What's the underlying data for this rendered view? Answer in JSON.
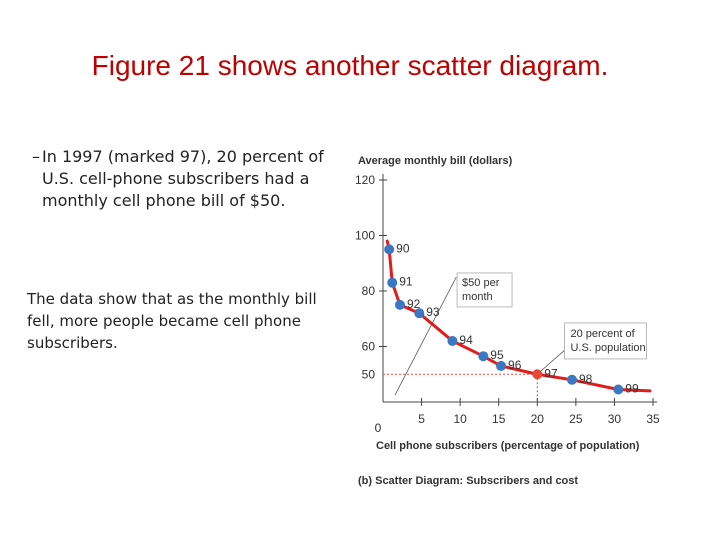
{
  "title": "Figure 21 shows another scatter diagram.",
  "bullet": {
    "dash": "–",
    "text": "In 1997 (marked 97), 20 percent of U.S. cell-phone subscribers had a monthly cell phone bill of $50."
  },
  "note": "The data show that as the monthly bill fell, more people became cell phone subscribers.",
  "colors": {
    "point": "#3a78c3",
    "highlight": "#e8483a",
    "trend": "#e21b1b",
    "accent_text": "#e0452f",
    "title": "#c00000"
  },
  "chart_data": {
    "type": "scatter",
    "ylabel": "Average monthly bill (dollars)",
    "xlabel": "Cell phone subscribers (percentage of population)",
    "caption": "(b)  Scatter Diagram: Subscribers and cost",
    "xlim": [
      0,
      35
    ],
    "ylim": [
      40,
      120
    ],
    "x_ticks": [
      "5",
      "10",
      "15",
      "20",
      "25",
      "30",
      "35"
    ],
    "x_origin_label": "0",
    "y_ticks": [
      "60",
      "80",
      "100",
      "120"
    ],
    "highlight_x_tick": "20",
    "highlight_y_tick": "50",
    "points": [
      {
        "label": "90",
        "x": 0.8,
        "y": 95
      },
      {
        "label": "91",
        "x": 1.2,
        "y": 83
      },
      {
        "label": "92",
        "x": 2.2,
        "y": 75
      },
      {
        "label": "93",
        "x": 4.7,
        "y": 72
      },
      {
        "label": "94",
        "x": 9.0,
        "y": 62
      },
      {
        "label": "95",
        "x": 13.0,
        "y": 56.5
      },
      {
        "label": "96",
        "x": 15.3,
        "y": 53
      },
      {
        "label": "97",
        "x": 20.0,
        "y": 50,
        "highlight": true
      },
      {
        "label": "98",
        "x": 24.5,
        "y": 48
      },
      {
        "label": "99",
        "x": 30.5,
        "y": 44.5
      }
    ],
    "annotations": [
      {
        "lines": [
          "$50 per",
          "month"
        ]
      },
      {
        "lines": [
          "20 percent of",
          "U.S. population"
        ]
      }
    ]
  }
}
